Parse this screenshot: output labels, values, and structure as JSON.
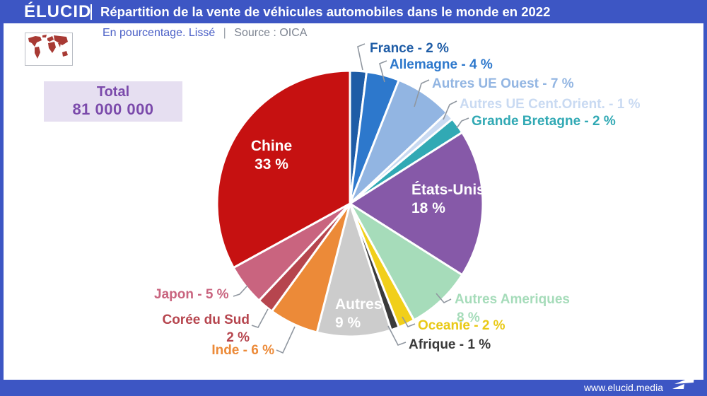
{
  "header": {
    "logo": "ÉLUCID",
    "title": "Répartition de la vente de véhicules automobiles dans le monde en 2022"
  },
  "subtitle": {
    "method": "En pourcentage. Lissé",
    "separator": "|",
    "source": "Source : OICA"
  },
  "total_box": {
    "label": "Total",
    "value": "81 000 000"
  },
  "footer": {
    "url": "www.elucid.media"
  },
  "colors": {
    "frame_blue": "#3d56c4",
    "total_box_bg": "#e6dff1",
    "total_box_text": "#7b4aab",
    "subtitle_blue": "#4a5fc6",
    "subtitle_gray": "#7d8491",
    "leader_line": "#9097a0",
    "map_red": "#a83a34"
  },
  "chart_data": {
    "type": "pie",
    "title": "Répartition de la vente de véhicules automobiles dans le monde en 2022",
    "unit": "%",
    "total_label": "Total",
    "total_value": "81 000 000",
    "start_angle_deg": 0,
    "direction": "clockwise",
    "slice_gap_stroke": "#ffffff",
    "segments": [
      {
        "name": "France",
        "value": 2,
        "color": "#1e5ca6",
        "label": "France - 2 %"
      },
      {
        "name": "Allemagne",
        "value": 4,
        "color": "#2d78cc",
        "label": "Allemagne - 4 %"
      },
      {
        "name": "Autres UE Ouest",
        "value": 7,
        "color": "#92b5e2",
        "label": "Autres UE Ouest - 7 %"
      },
      {
        "name": "Autres UE Cent.Orient.",
        "value": 1,
        "color": "#c9daf2",
        "label": "Autres UE Cent.Orient. - 1 %"
      },
      {
        "name": "Grande Bretagne",
        "value": 2,
        "color": "#31a9b4",
        "label": "Grande Bretagne - 2 %"
      },
      {
        "name": "États-Unis",
        "value": 18,
        "color": "#8659a8",
        "label_line1": "États-Unis",
        "label_line2": "18 %",
        "label_inside": true
      },
      {
        "name": "Autres Ameriques",
        "value": 8,
        "color": "#a6dcba",
        "label_line1": "Autres Ameriques",
        "label_line2": "8 %"
      },
      {
        "name": "Oceanie",
        "value": 2,
        "color": "#f1cf1a",
        "label": "Oceanie - 2 %"
      },
      {
        "name": "Afrique",
        "value": 1,
        "color": "#3b3b3b",
        "label": "Afrique - 1 %"
      },
      {
        "name": "Autres",
        "value": 9,
        "color": "#cccccc",
        "label_line1": "Autres",
        "label_line2": "9 %",
        "label_inside": true
      },
      {
        "name": "Inde",
        "value": 6,
        "color": "#ec8a38",
        "label": "Inde - 6 %"
      },
      {
        "name": "Corée du Sud",
        "value": 2,
        "color": "#b6454e",
        "label_line1": "Corée du Sud",
        "label_line2": "2 %"
      },
      {
        "name": "Japon",
        "value": 5,
        "color": "#c9647f",
        "label": "Japon - 5 %"
      },
      {
        "name": "Chine",
        "value": 33,
        "color": "#c61111",
        "label_line1": "Chine",
        "label_line2": "33 %",
        "label_inside": true
      }
    ]
  }
}
